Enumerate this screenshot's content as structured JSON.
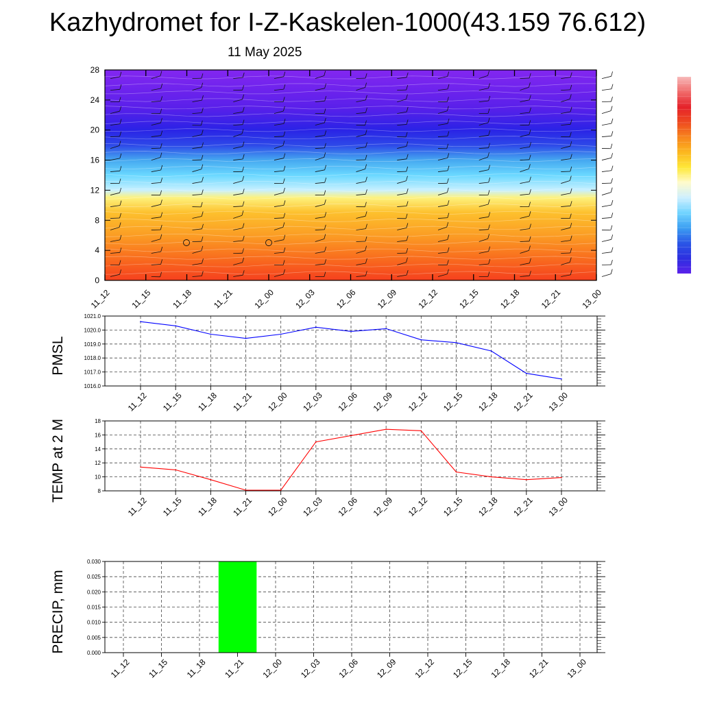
{
  "title": "Kazhydromet for I-Z-Kaskelen-1000(43.159 76.612)",
  "subtitle": "11 May 2025",
  "time_labels": [
    "11_12",
    "11_15",
    "11_18",
    "11_21",
    "12_00",
    "12_03",
    "12_06",
    "12_09",
    "12_12",
    "12_15",
    "12_18",
    "12_21",
    "13_00"
  ],
  "chart_data": [
    {
      "type": "heatmap",
      "ylim": [
        0,
        28
      ],
      "yticks": [
        "0",
        "4",
        "8",
        "12",
        "16",
        "20",
        "24",
        "28"
      ],
      "categories": [
        "11_12",
        "11_15",
        "11_18",
        "11_21",
        "12_00",
        "12_03",
        "12_06",
        "12_09",
        "12_12",
        "12_15",
        "12_18",
        "12_21",
        "13_00"
      ],
      "band_levels": [
        0,
        3,
        6,
        9,
        11,
        12,
        14,
        16,
        18,
        20,
        23,
        28
      ],
      "band_colors": [
        "#f5401e",
        "#f96e1e",
        "#fb9d24",
        "#fdc02d",
        "#fdf27d",
        "#c8f0ff",
        "#6ad8ff",
        "#45a8f0",
        "#2d48e8",
        "#2a23e6",
        "#5a20ea",
        "#8327f0"
      ],
      "colorbar_colors": [
        "#f7b9b9",
        "#f06a6a",
        "#e5222a",
        "#ee4a20",
        "#f7861e",
        "#fcb81f",
        "#fee83a",
        "#fffbcc",
        "#cdefff",
        "#70d4ff",
        "#3c9ef2",
        "#2a55e6",
        "#2d2fe0",
        "#5a22ea"
      ],
      "grid": false,
      "legend": "right"
    },
    {
      "type": "line",
      "ylabel": "PMSL",
      "ylim": [
        1016.0,
        1021.0
      ],
      "yticks": [
        "1016.0",
        "1017.0",
        "1018.0",
        "1019.0",
        "1020.0",
        "1021.0"
      ],
      "x": [
        "11_12",
        "11_15",
        "11_18",
        "11_21",
        "12_00",
        "12_03",
        "12_06",
        "12_09",
        "12_12",
        "12_15",
        "12_18",
        "12_21",
        "13_00"
      ],
      "values": [
        1020.6,
        1020.3,
        1019.7,
        1019.4,
        1019.7,
        1020.2,
        1019.9,
        1020.1,
        1019.3,
        1019.1,
        1018.5,
        1016.9,
        1016.5
      ],
      "color": "#0000ff",
      "grid": true
    },
    {
      "type": "line",
      "ylabel": "TEMP at 2 M",
      "ylim": [
        8,
        18
      ],
      "yticks": [
        "8",
        "10",
        "12",
        "14",
        "16",
        "18"
      ],
      "x": [
        "11_12",
        "11_15",
        "11_18",
        "11_21",
        "12_00",
        "12_03",
        "12_06",
        "12_09",
        "12_12",
        "12_15",
        "12_18",
        "12_21",
        "13_00"
      ],
      "values": [
        11.4,
        11.0,
        9.6,
        8.1,
        8.1,
        15.0,
        15.9,
        16.8,
        16.6,
        10.7,
        10.0,
        9.6,
        9.9
      ],
      "color": "#ff0000",
      "grid": true
    },
    {
      "type": "bar",
      "ylabel": "PRECIP, mm",
      "ylim": [
        0,
        0.03
      ],
      "yticks": [
        "0.000",
        "0.005",
        "0.010",
        "0.015",
        "0.020",
        "0.025",
        "0.030"
      ],
      "categories": [
        "11_12",
        "11_15",
        "11_18",
        "11_21",
        "12_00",
        "12_03",
        "12_06",
        "12_09",
        "12_12",
        "12_15",
        "12_18",
        "12_21",
        "13_00"
      ],
      "values": [
        0,
        0,
        0,
        0.03,
        0,
        0,
        0,
        0,
        0,
        0,
        0,
        0,
        0
      ],
      "color": "#00ff00",
      "grid": true
    }
  ]
}
